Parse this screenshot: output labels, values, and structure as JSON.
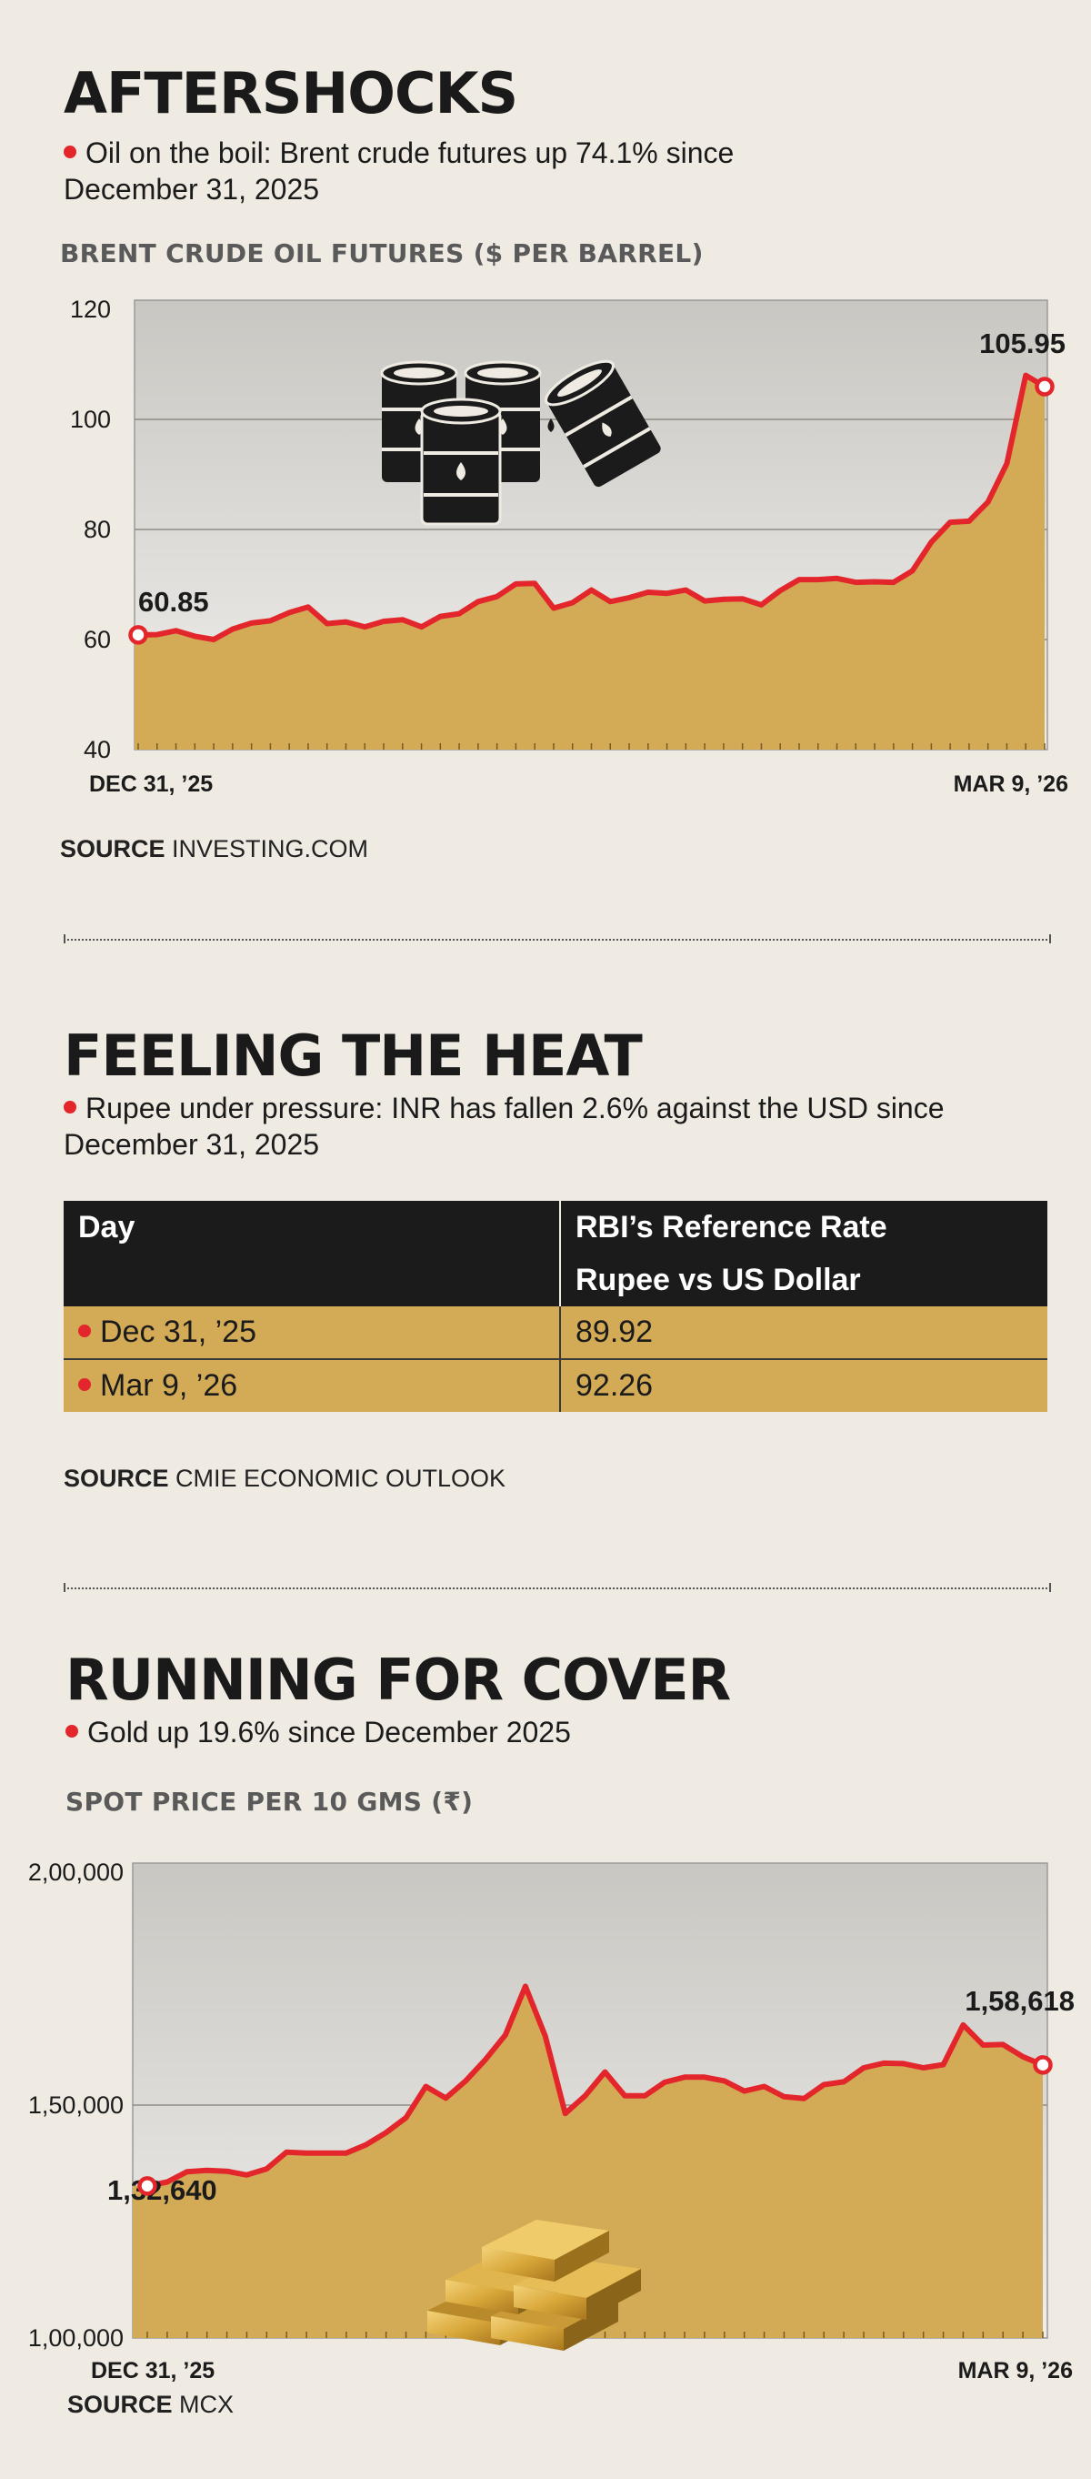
{
  "section1": {
    "title": "AFTERSHOCKS",
    "subtitle_line1": "Oil on the boil: Brent crude futures up 74.1% since",
    "subtitle_line2": "December 31, 2025",
    "chart_title": "BRENT CRUDE OIL FUTURES ($ PER BARREL)",
    "source_label": "SOURCE",
    "source_text": "INVESTING.COM"
  },
  "section2": {
    "title": "FEELING THE HEAT",
    "subtitle_line1": "Rupee under pressure: INR has fallen 2.6% against the USD since",
    "subtitle_line2": "December 31, 2025",
    "table": {
      "header_day": "Day",
      "header_rate": "RBI’s Reference Rate",
      "subheader_rate": "Rupee vs US Dollar",
      "rows": [
        {
          "day": "Dec 31, ’25",
          "rate": "89.92"
        },
        {
          "day": "Mar 9, ’26",
          "rate": "92.26"
        }
      ]
    },
    "source_label": "SOURCE",
    "source_text": "CMIE ECONOMIC OUTLOOK"
  },
  "section3": {
    "title": "RUNNING FOR COVER",
    "subtitle": "Gold up 19.6% since December 2025",
    "chart_title": "SPOT PRICE PER 10 GMS (₹)",
    "source_label": "SOURCE",
    "source_text": "MCX"
  },
  "colors": {
    "line": "#e3262b",
    "area": "#d3ab56",
    "background": "#efebe3",
    "table_header": "#1c1b1b"
  },
  "chart_data": [
    {
      "type": "area",
      "title": "BRENT CRUDE OIL FUTURES ($ PER BARREL)",
      "ylim": [
        40,
        120
      ],
      "yticks": [
        "120",
        "100",
        "80",
        "60",
        "40"
      ],
      "ytick_values": [
        120,
        100,
        80,
        60,
        40
      ],
      "x_start_label": "DEC 31, ’25",
      "x_end_label": "MAR 9, ’26",
      "start_label": "60.85",
      "end_label": "105.95",
      "grid": true,
      "series": [
        {
          "values": [
            60.85,
            60.9,
            61.6,
            60.6,
            60.0,
            61.9,
            63.0,
            63.4,
            64.9,
            65.9,
            62.9,
            63.2,
            62.3,
            63.3,
            63.6,
            62.3,
            64.2,
            64.7,
            66.9,
            67.8,
            70.1,
            70.2,
            65.7,
            66.7,
            69.0,
            66.9,
            67.6,
            68.6,
            68.4,
            69.0,
            67.0,
            67.3,
            67.4,
            66.3,
            68.9,
            70.9,
            70.9,
            71.1,
            70.4,
            70.5,
            70.4,
            72.5,
            77.7,
            81.3,
            81.5,
            85.0,
            92.0,
            108.0,
            105.95
          ]
        }
      ],
      "icon": "oil-barrels-icon"
    },
    {
      "type": "area",
      "title": "SPOT PRICE PER 10 GMS (₹)",
      "ylim": [
        100000,
        200000
      ],
      "yticks": [
        "2,00,000",
        "1,50,000",
        "1,00,000"
      ],
      "ytick_values": [
        200000,
        150000,
        100000
      ],
      "x_start_label": "DEC 31, ’25",
      "x_end_label": "MAR 9, ’26",
      "start_label": "1,32,640",
      "end_label": "1,58,618",
      "grid": true,
      "series": [
        {
          "values": [
            132640,
            133500,
            135700,
            136000,
            135800,
            135000,
            136300,
            139900,
            139700,
            139700,
            139700,
            141500,
            144100,
            147300,
            154000,
            151500,
            155200,
            159800,
            165100,
            175500,
            164800,
            148200,
            152000,
            157100,
            152000,
            152000,
            154900,
            156000,
            156000,
            155200,
            153000,
            154000,
            151800,
            151400,
            154400,
            155000,
            158000,
            159000,
            158900,
            158000,
            158700,
            167200,
            162900,
            163000,
            160400,
            158618
          ]
        }
      ],
      "icon": "gold-bars-icon"
    }
  ]
}
